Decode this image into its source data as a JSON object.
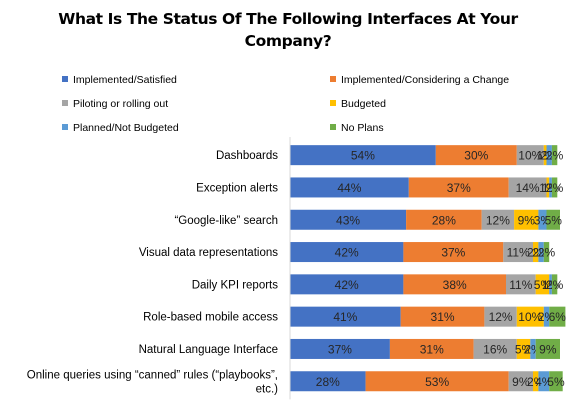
{
  "chart_data": {
    "type": "bar",
    "orientation": "horizontal",
    "stacked": true,
    "title_lines": [
      "What Is The Status Of The Following Interfaces At Your",
      "Company?"
    ],
    "categories": [
      [
        "Dashboards"
      ],
      [
        "Exception alerts"
      ],
      [
        "“Google-like” search"
      ],
      [
        "Visual data representations"
      ],
      [
        "Daily KPI reports"
      ],
      [
        "Role-based mobile access"
      ],
      [
        "Natural Language Interface"
      ],
      [
        "Online queries using “canned” rules (“playbooks”,",
        "etc.)"
      ]
    ],
    "series": [
      {
        "name": "Implemented/Satisfied",
        "color": "#4472C4",
        "values": [
          54,
          44,
          43,
          42,
          42,
          41,
          37,
          28
        ],
        "labels": [
          "54%",
          "44%",
          "43%",
          "42%",
          "42%",
          "41%",
          "37%",
          "28%"
        ]
      },
      {
        "name": "Implemented/Considering a Change",
        "color": "#ED7D31",
        "values": [
          30,
          37,
          28,
          37,
          38,
          31,
          31,
          53
        ],
        "labels": [
          "30%",
          "37%",
          "28%",
          "37%",
          "38%",
          "31%",
          "31%",
          "53%"
        ]
      },
      {
        "name": "Piloting or rolling out",
        "color": "#A5A5A5",
        "values": [
          10,
          14,
          12,
          11,
          11,
          12,
          16,
          9
        ],
        "labels": [
          "10%",
          "14%",
          "12%",
          "11%",
          "11%",
          "12%",
          "16%",
          "9%"
        ]
      },
      {
        "name": "Budgeted",
        "color": "#FFC000",
        "values": [
          1,
          1,
          9,
          2,
          5,
          10,
          5,
          2
        ],
        "labels": [
          "1%",
          "1%",
          "9%",
          "2%",
          "5%",
          "10%",
          "5%",
          "2%"
        ]
      },
      {
        "name": "Planned/Not Budgeted",
        "color": "#5B9BD5",
        "values": [
          2,
          1,
          3,
          2,
          1,
          2,
          2,
          4
        ],
        "labels": [
          "2%",
          "1%",
          "3%",
          "2%",
          "1%",
          "2%",
          "2%",
          "4%"
        ]
      },
      {
        "name": "No Plans",
        "color": "#70AD47",
        "values": [
          2,
          2,
          5,
          2,
          2,
          6,
          9,
          5
        ],
        "labels": [
          "2%",
          "2%",
          "5%",
          "2%",
          "2%",
          "6%",
          "9%",
          "5%"
        ]
      }
    ],
    "xlim": [
      0,
      100
    ],
    "grid": false,
    "legend_position": "top"
  }
}
